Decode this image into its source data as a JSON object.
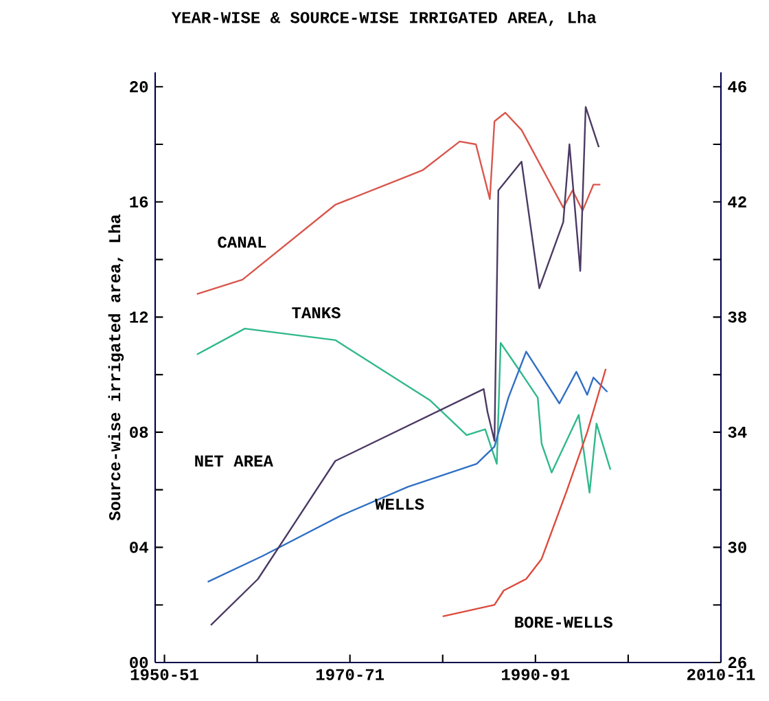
{
  "chart_data": {
    "type": "line",
    "title": "YEAR-WISE & SOURCE-WISE IRRIGATED AREA, Lha",
    "ylabel": "Source-wise irrigated area, Lha",
    "xlim": [
      "1949",
      "2010"
    ],
    "xticks": [
      {
        "value": "1950",
        "label": "1950-51"
      },
      {
        "value": "1960",
        "label": null
      },
      {
        "value": "1970",
        "label": "1970-71"
      },
      {
        "value": "1980",
        "label": null
      },
      {
        "value": "1990",
        "label": "1990-91"
      },
      {
        "value": "2000",
        "label": null
      },
      {
        "value": "2010",
        "label": "2010-11"
      }
    ],
    "ylim": [
      0,
      20.5
    ],
    "yticks": [
      {
        "value": 0,
        "label": "00"
      },
      {
        "value": 2,
        "label": null
      },
      {
        "value": 4,
        "label": "04"
      },
      {
        "value": 6,
        "label": null
      },
      {
        "value": 8,
        "label": "08"
      },
      {
        "value": 10,
        "label": null
      },
      {
        "value": 12,
        "label": "12"
      },
      {
        "value": 14,
        "label": null
      },
      {
        "value": 16,
        "label": "16"
      },
      {
        "value": 18,
        "label": null
      },
      {
        "value": 20,
        "label": "20"
      }
    ],
    "y2lim": [
      26,
      46.5
    ],
    "y2ticks": [
      26,
      {
        "value": 28,
        "label": null
      },
      30,
      {
        "value": 32,
        "label": null
      },
      34,
      {
        "value": 36,
        "label": null
      },
      38,
      {
        "value": 40,
        "label": null
      },
      42,
      {
        "value": 44,
        "label": null
      },
      46
    ],
    "grid": false,
    "marker": "none",
    "line_style": "solid",
    "series": [
      {
        "name": "CANAL",
        "color": "#d9564c",
        "x": [
          "1953-07",
          "1958-06",
          "1968-06",
          "1977-11",
          "1981-11",
          "1983-08",
          "1985-02",
          "1985-08",
          "1986-10",
          "1988-07",
          "1993-01",
          "1994-01",
          "1995-02",
          "1996-04",
          "1997-01"
        ],
        "values": [
          12.8,
          13.3,
          15.9,
          17.1,
          18.1,
          18.0,
          16.1,
          18.8,
          19.1,
          18.5,
          15.8,
          16.4,
          15.7,
          16.6,
          16.6
        ]
      },
      {
        "name": "TANKS",
        "color": "#2fb88c",
        "x": [
          "1953-07",
          "1958-09",
          "1968-06",
          "1978-09",
          "1982-08",
          "1984-08",
          "1985-11",
          "1986-04",
          "1988-03",
          "1990-04",
          "1990-09",
          "1991-10",
          "1994-09",
          "1995-11",
          "1996-08",
          "1998-02"
        ],
        "values": [
          10.7,
          11.6,
          11.2,
          9.1,
          7.9,
          8.1,
          6.9,
          11.1,
          10.2,
          9.2,
          7.6,
          6.6,
          8.6,
          5.9,
          8.3,
          6.7
        ]
      },
      {
        "name": "NET AREA",
        "color": "#4b3a63",
        "axis": "y2",
        "x": [
          "1955-01",
          "1960-02",
          "1968-06",
          "1984-06",
          "1984-11",
          "1985-08",
          "1986-01",
          "1988-07",
          "1990-06",
          "1993-01",
          "1993-09",
          "1994-11",
          "1995-06",
          "1996-11"
        ],
        "values": [
          27.3,
          28.9,
          33.0,
          35.5,
          34.7,
          33.7,
          42.4,
          43.4,
          39.0,
          41.3,
          44.0,
          39.6,
          45.3,
          43.9
        ]
      },
      {
        "name": "WELLS",
        "color": "#2f6fc4",
        "x": [
          "1954-09",
          "1960-08",
          "1969-01",
          "1976-04",
          "1983-09",
          "1985-08",
          "1987-02",
          "1989-01",
          "1992-08",
          "1994-06",
          "1995-08",
          "1996-04",
          "1997-10"
        ],
        "values": [
          2.8,
          3.7,
          5.1,
          6.1,
          6.9,
          7.5,
          9.2,
          10.8,
          9.0,
          10.1,
          9.3,
          9.9,
          9.4
        ]
      },
      {
        "name": "BORE-WELLS",
        "color": "#dc4a3c",
        "x": [
          "1980-01",
          "1985-08",
          "1986-08",
          "1989-01",
          "1990-09",
          "1993-06",
          "1995-08",
          "1997-08"
        ],
        "values": [
          1.6,
          2.0,
          2.5,
          2.9,
          3.6,
          6.0,
          8.0,
          10.2
        ]
      }
    ]
  }
}
